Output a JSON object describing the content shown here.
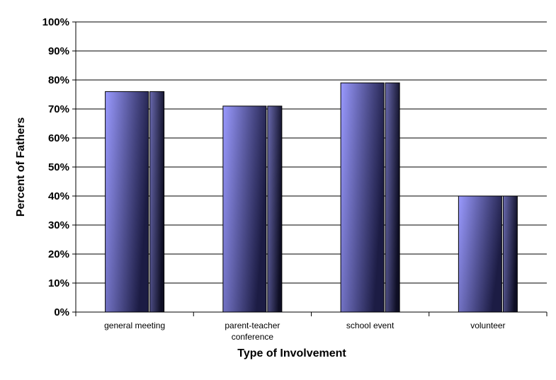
{
  "chart_data": {
    "type": "bar",
    "title": "",
    "xlabel": "Type of Involvement",
    "ylabel": "Percent of Fathers",
    "categories": [
      "general meeting",
      "parent-teacher conference",
      "school event",
      "volunteer"
    ],
    "category_lines": [
      [
        "general meeting"
      ],
      [
        "parent-teacher",
        "conference"
      ],
      [
        "school event"
      ],
      [
        "volunteer"
      ]
    ],
    "values": [
      76,
      71,
      79,
      40
    ],
    "ylim": [
      0,
      100
    ],
    "yticks": [
      0,
      10,
      20,
      30,
      40,
      50,
      60,
      70,
      80,
      90,
      100
    ],
    "ytick_labels": [
      "0%",
      "10%",
      "20%",
      "30%",
      "40%",
      "50%",
      "60%",
      "70%",
      "80%",
      "90%",
      "100%"
    ],
    "grid": true,
    "legend": "none",
    "colors": {
      "bar_light": "#9a9aff",
      "bar_dark": "#1c1c44",
      "bar_side_light": "#6a6ab0",
      "bar_side_dark": "#0e0e24",
      "axis": "#000000"
    }
  }
}
